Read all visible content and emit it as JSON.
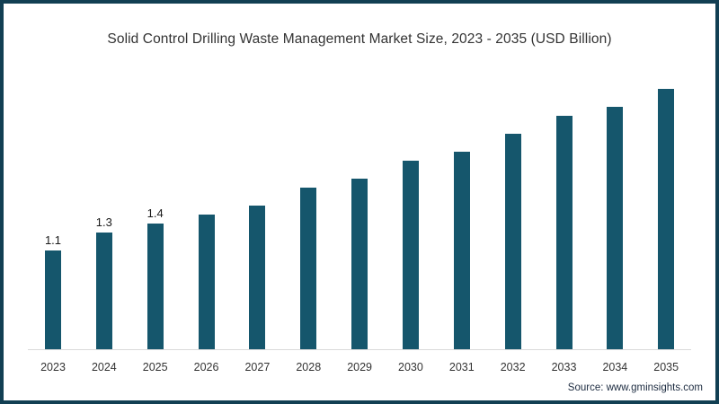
{
  "title": "Solid Control Drilling Waste Management Market Size, 2023 - 2035 (USD Billion)",
  "source": "Source: www.gminsights.com",
  "colors": {
    "bar": "#15566c",
    "frame_border": "#123f53",
    "axis_line": "#d9d9d9",
    "title_text": "#333333",
    "tick_text": "#333333",
    "source_text": "#1c2b40",
    "background": "#ffffff"
  },
  "chart_data": {
    "type": "bar",
    "title": "Solid Control Drilling Waste Management Market Size, 2023 - 2035 (USD Billion)",
    "categories": [
      "2023",
      "2024",
      "2025",
      "2026",
      "2027",
      "2028",
      "2029",
      "2030",
      "2031",
      "2032",
      "2033",
      "2034",
      "2035"
    ],
    "values": [
      1.1,
      1.3,
      1.4,
      1.5,
      1.6,
      1.8,
      1.9,
      2.1,
      2.2,
      2.4,
      2.6,
      2.7,
      2.9
    ],
    "value_labels": [
      "1.1",
      "1.3",
      "1.4",
      "",
      "",
      "",
      "",
      "",
      "",
      "",
      "",
      "",
      ""
    ],
    "xlabel": "",
    "ylabel": "",
    "ylim": [
      0,
      3.2
    ],
    "grid": false,
    "legend": false,
    "bar_color": "#15566c",
    "axis_line_on": true,
    "source": "Source: www.gminsights.com"
  }
}
